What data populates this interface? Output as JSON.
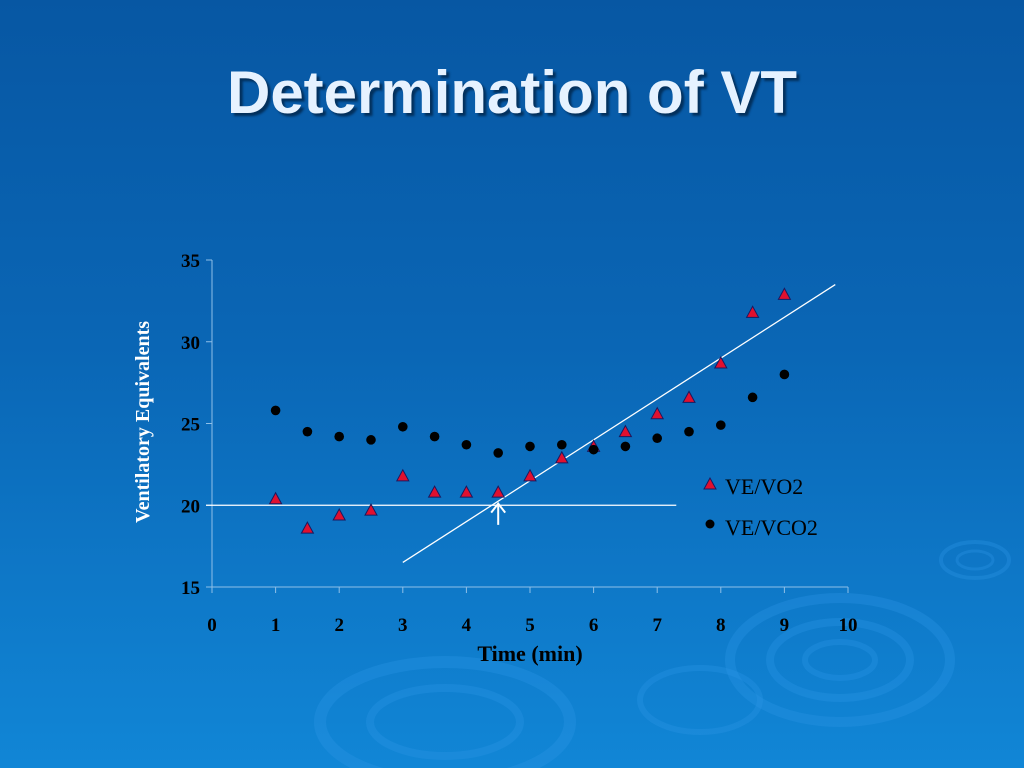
{
  "slide": {
    "title": "Determination of VT"
  },
  "colors": {
    "background": "#0a66b5",
    "title": "#e6f2ff",
    "triangle": "#e0102f",
    "dot": "#000000",
    "line": "#ffffff"
  },
  "chart_data": {
    "type": "scatter",
    "xlabel": "Time (min)",
    "ylabel": "Ventilatory Equivalents",
    "xlim": [
      0,
      10
    ],
    "ylim": [
      15,
      35
    ],
    "x_ticks": [
      0,
      1,
      2,
      3,
      4,
      5,
      6,
      7,
      8,
      9,
      10
    ],
    "y_ticks": [
      15,
      20,
      25,
      30,
      35
    ],
    "grid": false,
    "legend_position": "right",
    "series": [
      {
        "name": "VE/VO2",
        "marker": "triangle",
        "x": [
          1,
          1.5,
          2,
          2.5,
          3,
          3.5,
          4,
          4.5,
          5,
          5.5,
          6,
          6.5,
          7,
          7.5,
          8,
          8.5,
          9
        ],
        "y": [
          20.4,
          18.6,
          19.4,
          19.7,
          21.8,
          20.8,
          20.8,
          20.8,
          21.8,
          22.9,
          23.6,
          24.5,
          25.6,
          26.6,
          28.7,
          31.8,
          32.9
        ]
      },
      {
        "name": "VE/VCO2",
        "marker": "dot",
        "x": [
          1,
          1.5,
          2,
          2.5,
          3,
          3.5,
          4,
          4.5,
          5,
          5.5,
          6,
          6.5,
          7,
          7.5,
          8,
          8.5,
          9,
          9.5
        ],
        "y": [
          25.8,
          24.5,
          24.2,
          24.0,
          24.8,
          24.2,
          23.7,
          23.2,
          23.6,
          23.7,
          23.4,
          23.6,
          24.1,
          24.5,
          24.9,
          26.6,
          28.0,
          null
        ]
      }
    ],
    "annotations": {
      "baseline_line": {
        "x": [
          0,
          7.3
        ],
        "y": [
          20.0,
          20.0
        ]
      },
      "slope_line": {
        "x": [
          3.0,
          9.8
        ],
        "y": [
          16.5,
          33.5
        ]
      },
      "arrow": {
        "x": 4.5,
        "y_from": 18.8,
        "y_to": 20.1
      }
    }
  }
}
